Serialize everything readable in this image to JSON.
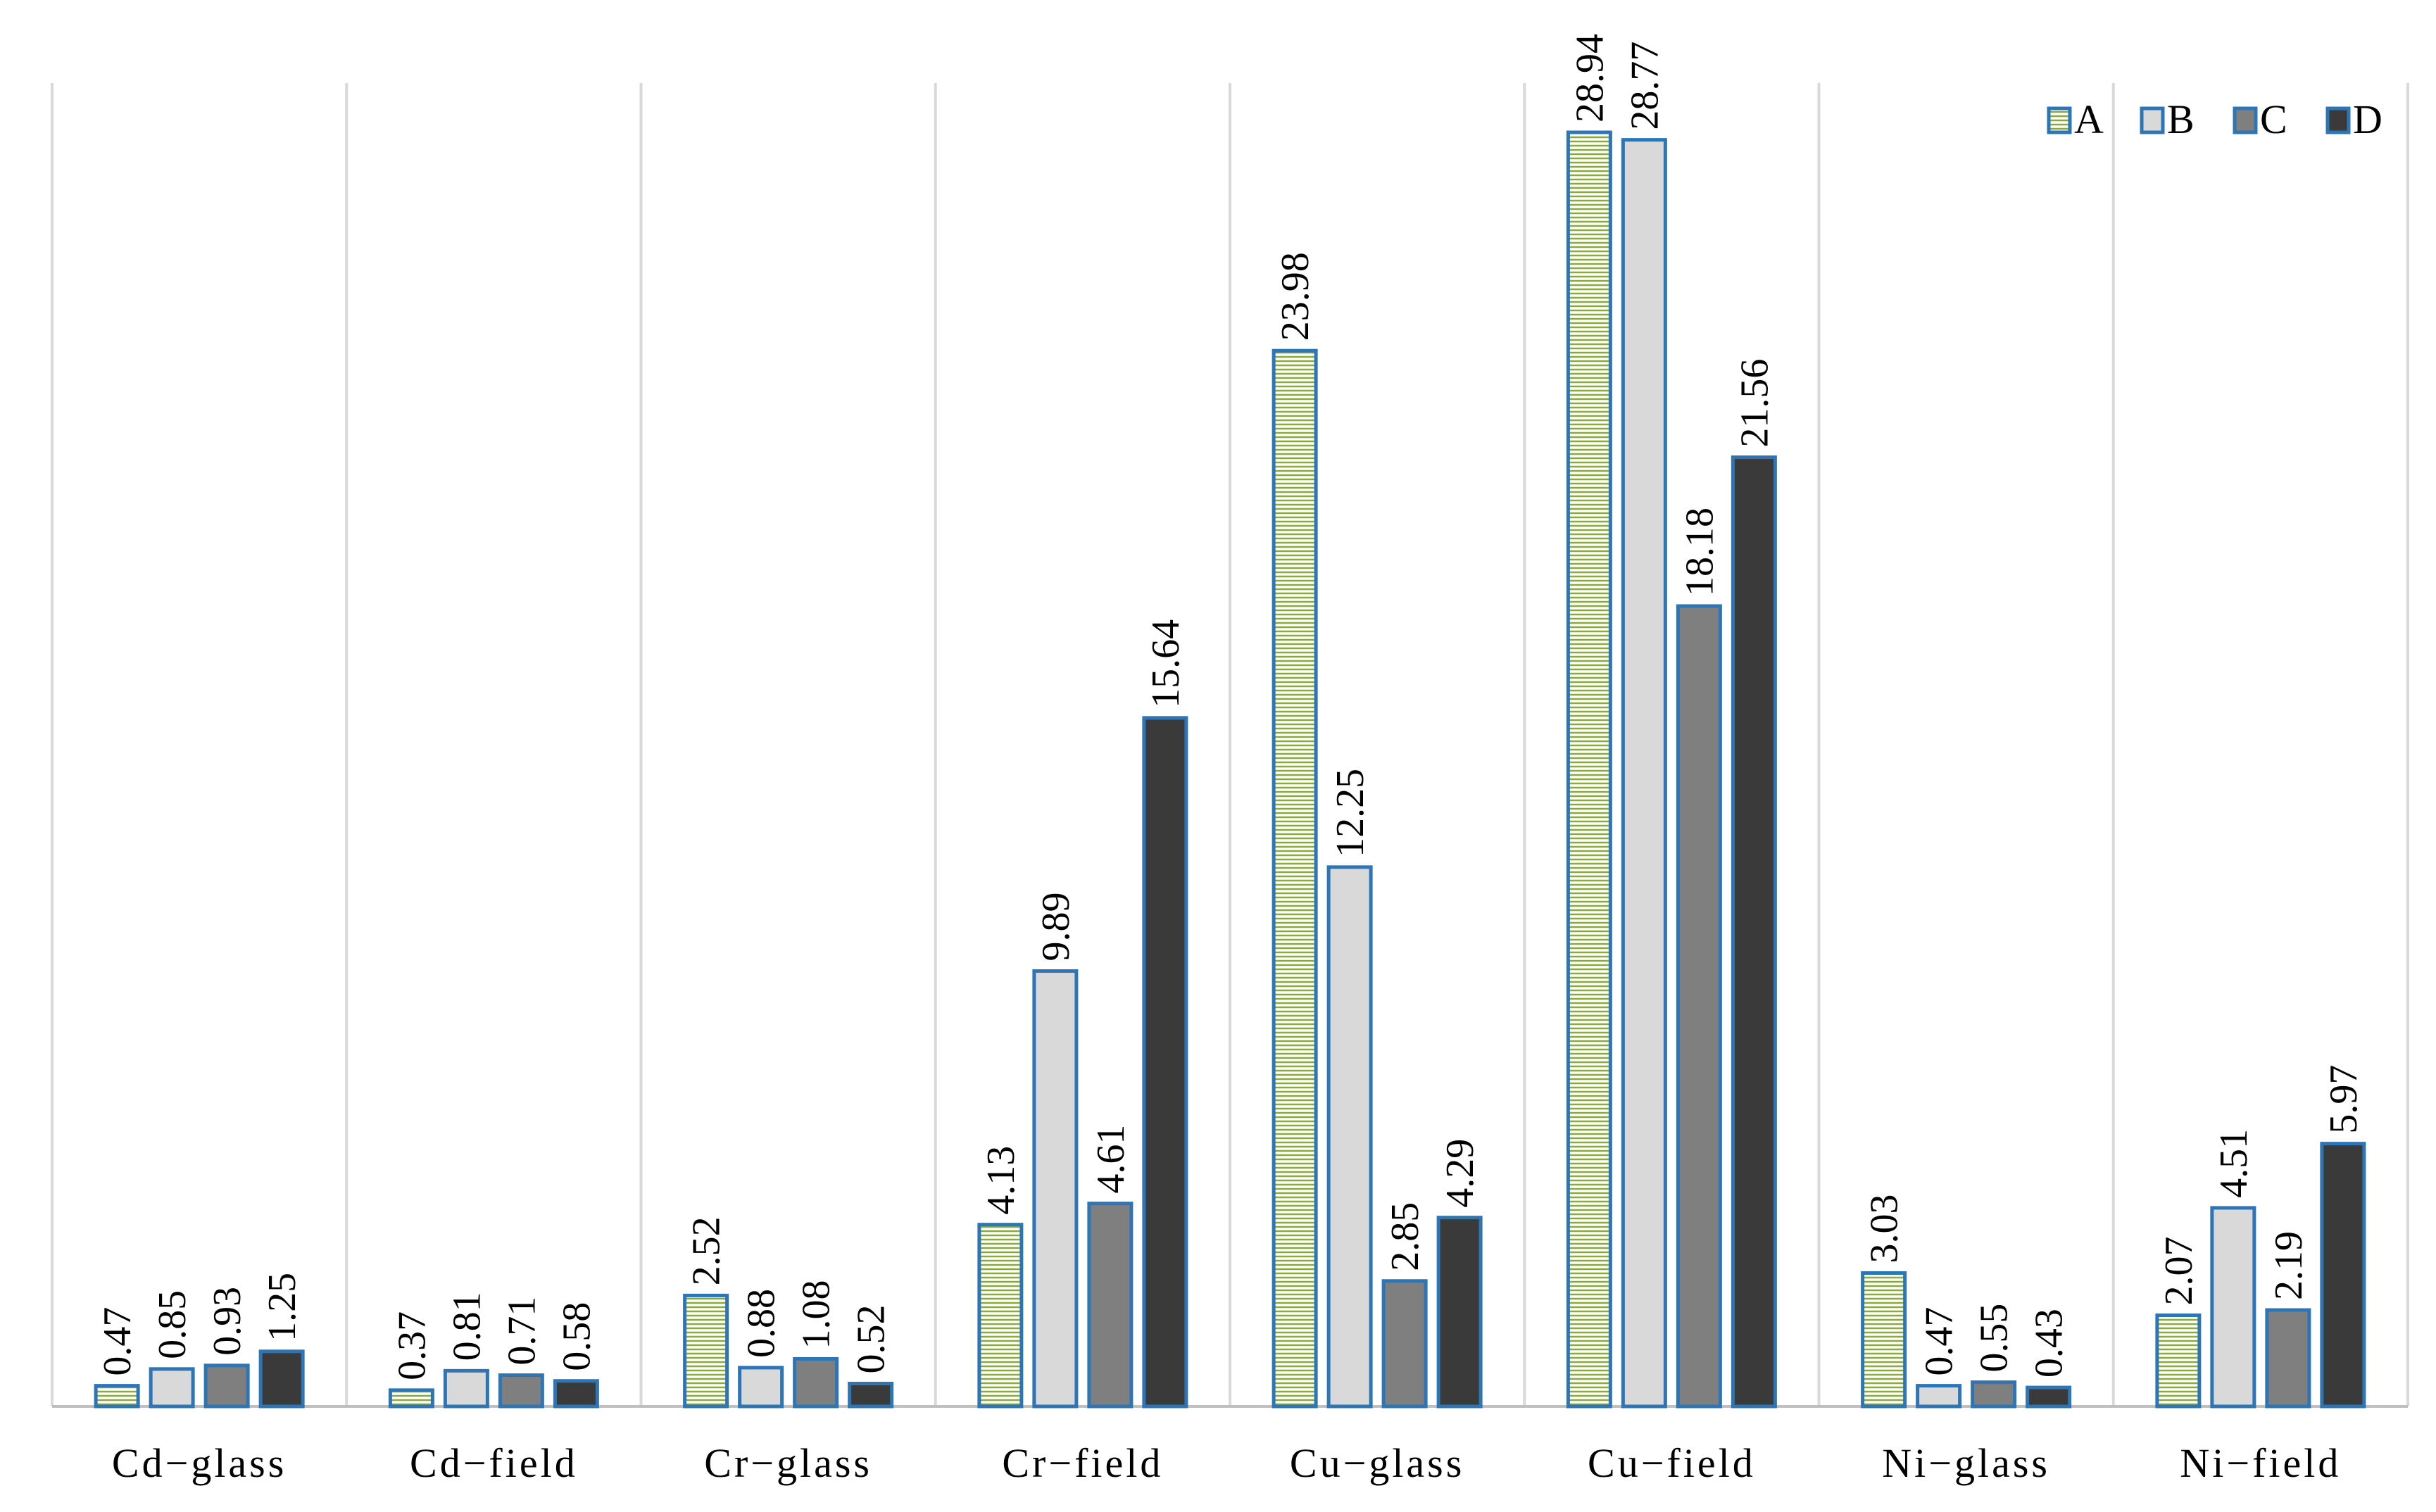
{
  "chart_data": {
    "type": "bar",
    "title": "",
    "xlabel": "",
    "ylabel": "",
    "ylim": [
      0,
      30
    ],
    "grid": "vertical category separators",
    "legend_position": "top-right",
    "categories": [
      "Cd−glass",
      "Cd−field",
      "Cr−glass",
      "Cr−field",
      "Cu−glass",
      "Cu−field",
      "Ni−glass",
      "Ni−field"
    ],
    "series": [
      {
        "name": "A",
        "values": [
          0.47,
          0.37,
          2.52,
          4.13,
          23.98,
          28.94,
          3.03,
          2.07
        ]
      },
      {
        "name": "B",
        "values": [
          0.85,
          0.81,
          0.88,
          9.89,
          12.25,
          28.77,
          0.47,
          4.51
        ]
      },
      {
        "name": "C",
        "values": [
          0.93,
          0.71,
          1.08,
          4.61,
          2.85,
          18.18,
          0.55,
          2.19
        ]
      },
      {
        "name": "D",
        "values": [
          1.25,
          0.58,
          0.52,
          15.64,
          4.29,
          21.56,
          0.43,
          5.97
        ]
      }
    ],
    "labels": [
      [
        "0.47",
        "0.37",
        "2.52",
        "4.13",
        "23.98",
        "28.94",
        "3.03",
        "2.07"
      ],
      [
        "0.85",
        "0.81",
        "0.88",
        "9.89",
        "12.25",
        "28.77",
        "0.47",
        "4.51"
      ],
      [
        "0.93",
        "0.71",
        "1.08",
        "4.61",
        "2.85",
        "18.18",
        "0.55",
        "2.19"
      ],
      [
        "1.25",
        "0.58",
        "0.52",
        "15.64",
        "4.29",
        "21.56",
        "0.43",
        "5.97"
      ]
    ]
  },
  "colors": {
    "bar_border": "#2E75B6",
    "series_A_fill": "#FFFFFF",
    "series_A_hatch": "#8CAA3C",
    "series_B_fill": "#D9D9D9",
    "series_C_fill": "#7F7F7F",
    "series_D_fill": "#3A3A3A",
    "grid": "#D9D9D9",
    "axis": "#BFBFBF"
  }
}
